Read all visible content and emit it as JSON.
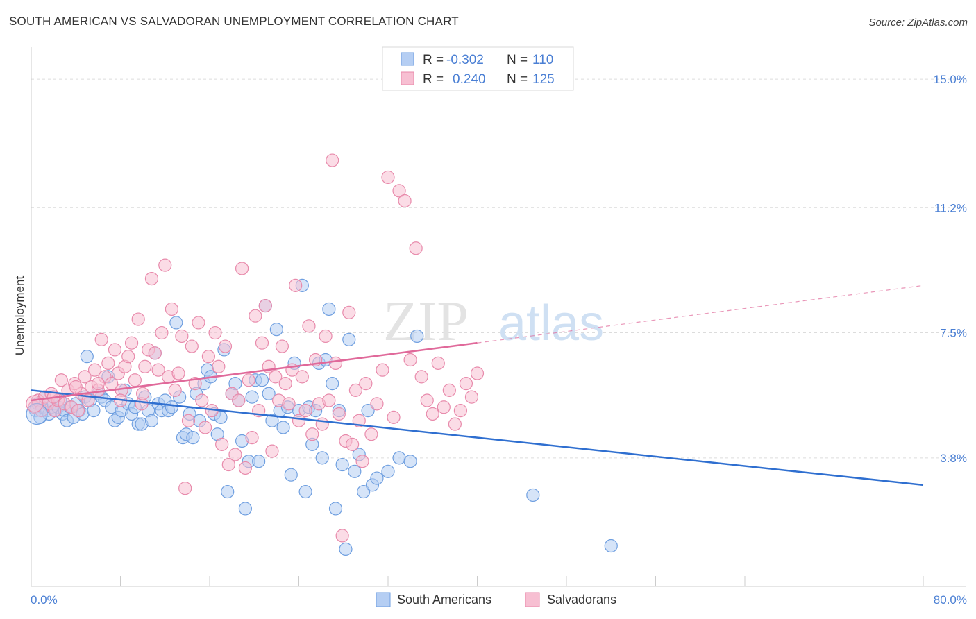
{
  "title": "SOUTH AMERICAN VS SALVADORAN UNEMPLOYMENT CORRELATION CHART",
  "source": "Source: ZipAtlas.com",
  "watermark": {
    "zip": "ZIP",
    "atlas": "atlas"
  },
  "stats": {
    "r_label": "R =",
    "n_label": "N =",
    "rows": [
      {
        "r": "-0.302",
        "n": "110",
        "color": "#4a7fd4",
        "fill": "#b5cef3"
      },
      {
        "r": "0.240",
        "n": "125",
        "color": "#4a7fd4",
        "fill": "#f7bfd2"
      }
    ]
  },
  "legend": [
    {
      "label": "South Americans",
      "color": "#b5cef3",
      "stroke": "#6f9fe0"
    },
    {
      "label": "Salvadorans",
      "color": "#f7bfd2",
      "stroke": "#e88aab"
    }
  ],
  "chart_data": {
    "type": "scatter",
    "ylabel": "Unemployment",
    "xlim": [
      0,
      80
    ],
    "ylim": [
      0,
      15.7
    ],
    "x_tick_labels": [
      "0.0%",
      "80.0%"
    ],
    "y_ticks": [
      3.8,
      7.5,
      11.2,
      15.0
    ],
    "y_tick_labels": [
      "3.8%",
      "7.5%",
      "11.2%",
      "15.0%"
    ],
    "grid": "horizontal dashed",
    "legend_position": "bottom-center",
    "series": [
      {
        "name": "South Americans",
        "color": "#6f9fe0",
        "fill": "#b5cef3",
        "trend": {
          "x": [
            0,
            80
          ],
          "y": [
            5.8,
            3.0
          ],
          "dashed_from": null
        },
        "points": [
          [
            0.4,
            5.2
          ],
          [
            0.6,
            5.4
          ],
          [
            0.8,
            5.0
          ],
          [
            1.0,
            5.3
          ],
          [
            1.2,
            5.6
          ],
          [
            1.4,
            5.2
          ],
          [
            1.6,
            5.1
          ],
          [
            1.8,
            5.3
          ],
          [
            2.0,
            5.4
          ],
          [
            2.2,
            5.2
          ],
          [
            2.4,
            5.3
          ],
          [
            2.6,
            5.5
          ],
          [
            2.8,
            5.1
          ],
          [
            3.0,
            5.2
          ],
          [
            3.2,
            4.9
          ],
          [
            3.5,
            5.3
          ],
          [
            3.8,
            5.0
          ],
          [
            4.0,
            5.4
          ],
          [
            4.3,
            5.2
          ],
          [
            4.6,
            5.1
          ],
          [
            4.8,
            5.6
          ],
          [
            5.0,
            6.8
          ],
          [
            5.3,
            5.5
          ],
          [
            5.6,
            5.2
          ],
          [
            6.0,
            5.7
          ],
          [
            6.3,
            5.6
          ],
          [
            6.6,
            5.5
          ],
          [
            6.9,
            6.2
          ],
          [
            7.2,
            5.3
          ],
          [
            7.5,
            4.9
          ],
          [
            7.8,
            5.0
          ],
          [
            8.1,
            5.2
          ],
          [
            8.4,
            5.8
          ],
          [
            8.7,
            5.4
          ],
          [
            9.0,
            5.1
          ],
          [
            9.3,
            5.3
          ],
          [
            9.6,
            4.8
          ],
          [
            9.9,
            4.8
          ],
          [
            10.2,
            5.6
          ],
          [
            10.5,
            5.2
          ],
          [
            10.8,
            4.9
          ],
          [
            11.1,
            6.9
          ],
          [
            11.4,
            5.4
          ],
          [
            11.7,
            5.2
          ],
          [
            12.0,
            5.5
          ],
          [
            12.3,
            5.2
          ],
          [
            12.6,
            5.3
          ],
          [
            13.0,
            7.8
          ],
          [
            13.3,
            5.6
          ],
          [
            13.6,
            4.4
          ],
          [
            13.9,
            4.5
          ],
          [
            14.2,
            5.1
          ],
          [
            14.5,
            4.4
          ],
          [
            14.8,
            5.7
          ],
          [
            15.1,
            4.9
          ],
          [
            15.5,
            6.0
          ],
          [
            15.8,
            6.4
          ],
          [
            16.1,
            6.2
          ],
          [
            16.4,
            5.1
          ],
          [
            16.7,
            4.5
          ],
          [
            17.0,
            5.0
          ],
          [
            17.3,
            7.0
          ],
          [
            17.6,
            2.8
          ],
          [
            18.0,
            5.7
          ],
          [
            18.3,
            6.0
          ],
          [
            18.6,
            5.5
          ],
          [
            18.9,
            4.3
          ],
          [
            19.2,
            2.3
          ],
          [
            19.5,
            3.7
          ],
          [
            19.8,
            5.6
          ],
          [
            20.1,
            6.1
          ],
          [
            20.4,
            3.7
          ],
          [
            20.7,
            6.1
          ],
          [
            21.0,
            8.3
          ],
          [
            21.3,
            5.7
          ],
          [
            21.6,
            4.9
          ],
          [
            22.0,
            7.6
          ],
          [
            22.3,
            5.2
          ],
          [
            22.6,
            4.7
          ],
          [
            23.0,
            5.3
          ],
          [
            23.3,
            3.3
          ],
          [
            23.6,
            6.6
          ],
          [
            24.0,
            5.2
          ],
          [
            24.3,
            8.9
          ],
          [
            24.6,
            2.8
          ],
          [
            24.9,
            5.3
          ],
          [
            25.2,
            4.2
          ],
          [
            25.5,
            5.2
          ],
          [
            25.8,
            6.6
          ],
          [
            26.1,
            3.8
          ],
          [
            26.4,
            6.7
          ],
          [
            26.7,
            8.2
          ],
          [
            27.0,
            6.0
          ],
          [
            27.3,
            2.3
          ],
          [
            27.6,
            5.2
          ],
          [
            27.9,
            3.6
          ],
          [
            28.2,
            1.1
          ],
          [
            28.5,
            7.3
          ],
          [
            29.0,
            3.4
          ],
          [
            29.4,
            3.9
          ],
          [
            29.8,
            2.8
          ],
          [
            30.2,
            5.2
          ],
          [
            30.6,
            3.0
          ],
          [
            31.0,
            3.2
          ],
          [
            32.0,
            3.4
          ],
          [
            33.0,
            3.8
          ],
          [
            34.0,
            3.7
          ],
          [
            34.6,
            7.4
          ],
          [
            45.0,
            2.7
          ],
          [
            52.0,
            1.2
          ]
        ]
      },
      {
        "name": "Salvadorans",
        "color": "#e88aab",
        "fill": "#f7bfd2",
        "trend": {
          "x": [
            0,
            80
          ],
          "y": [
            5.5,
            8.9
          ],
          "dashed_from": 40
        },
        "points": [
          [
            0.3,
            5.3
          ],
          [
            0.6,
            5.5
          ],
          [
            0.9,
            5.2
          ],
          [
            1.2,
            5.6
          ],
          [
            1.5,
            5.4
          ],
          [
            1.8,
            5.7
          ],
          [
            2.1,
            5.2
          ],
          [
            2.4,
            5.5
          ],
          [
            2.7,
            6.1
          ],
          [
            3.0,
            5.4
          ],
          [
            3.3,
            5.8
          ],
          [
            3.6,
            5.3
          ],
          [
            3.9,
            6.0
          ],
          [
            4.2,
            5.2
          ],
          [
            4.5,
            5.7
          ],
          [
            4.8,
            6.2
          ],
          [
            5.1,
            5.5
          ],
          [
            5.4,
            5.9
          ],
          [
            5.7,
            6.4
          ],
          [
            6.0,
            5.8
          ],
          [
            6.3,
            7.3
          ],
          [
            6.6,
            6.2
          ],
          [
            6.9,
            6.6
          ],
          [
            7.2,
            6.0
          ],
          [
            7.5,
            7.0
          ],
          [
            7.8,
            6.3
          ],
          [
            8.1,
            5.8
          ],
          [
            8.4,
            6.5
          ],
          [
            8.7,
            6.8
          ],
          [
            9.0,
            7.2
          ],
          [
            9.3,
            6.1
          ],
          [
            9.6,
            7.9
          ],
          [
            9.9,
            5.4
          ],
          [
            10.2,
            6.5
          ],
          [
            10.5,
            7.0
          ],
          [
            10.8,
            9.1
          ],
          [
            11.1,
            6.9
          ],
          [
            11.4,
            6.4
          ],
          [
            11.7,
            7.5
          ],
          [
            12.0,
            9.5
          ],
          [
            12.3,
            6.2
          ],
          [
            12.6,
            8.2
          ],
          [
            12.9,
            5.8
          ],
          [
            13.2,
            6.3
          ],
          [
            13.5,
            7.4
          ],
          [
            13.8,
            2.9
          ],
          [
            14.1,
            4.9
          ],
          [
            14.4,
            7.1
          ],
          [
            14.7,
            6.0
          ],
          [
            15.0,
            7.8
          ],
          [
            15.3,
            5.5
          ],
          [
            15.6,
            4.7
          ],
          [
            15.9,
            6.8
          ],
          [
            16.2,
            5.2
          ],
          [
            16.5,
            7.5
          ],
          [
            16.8,
            6.5
          ],
          [
            17.1,
            4.2
          ],
          [
            17.4,
            7.1
          ],
          [
            17.7,
            3.6
          ],
          [
            18.0,
            5.7
          ],
          [
            18.3,
            3.9
          ],
          [
            18.6,
            5.5
          ],
          [
            18.9,
            9.4
          ],
          [
            19.2,
            3.5
          ],
          [
            19.5,
            6.1
          ],
          [
            19.8,
            4.4
          ],
          [
            20.1,
            8.0
          ],
          [
            20.4,
            5.2
          ],
          [
            20.7,
            7.2
          ],
          [
            21.0,
            8.3
          ],
          [
            21.3,
            6.5
          ],
          [
            21.6,
            4.0
          ],
          [
            21.9,
            6.2
          ],
          [
            22.2,
            5.5
          ],
          [
            22.5,
            7.1
          ],
          [
            22.8,
            6.0
          ],
          [
            23.1,
            5.4
          ],
          [
            23.4,
            6.4
          ],
          [
            23.7,
            8.9
          ],
          [
            24.0,
            4.9
          ],
          [
            24.3,
            6.2
          ],
          [
            24.6,
            5.2
          ],
          [
            24.9,
            7.7
          ],
          [
            25.2,
            4.5
          ],
          [
            25.5,
            6.7
          ],
          [
            25.8,
            5.4
          ],
          [
            26.1,
            4.8
          ],
          [
            26.4,
            7.4
          ],
          [
            26.7,
            5.5
          ],
          [
            27.0,
            12.6
          ],
          [
            27.3,
            6.6
          ],
          [
            27.6,
            5.1
          ],
          [
            27.9,
            1.5
          ],
          [
            28.2,
            4.3
          ],
          [
            28.5,
            8.1
          ],
          [
            28.8,
            4.2
          ],
          [
            29.1,
            5.8
          ],
          [
            29.4,
            4.9
          ],
          [
            29.7,
            3.7
          ],
          [
            30.0,
            6.0
          ],
          [
            30.5,
            4.5
          ],
          [
            31.0,
            5.4
          ],
          [
            31.5,
            6.4
          ],
          [
            32.0,
            12.1
          ],
          [
            32.5,
            5.0
          ],
          [
            33.0,
            11.7
          ],
          [
            33.5,
            11.4
          ],
          [
            34.0,
            6.7
          ],
          [
            34.5,
            10.0
          ],
          [
            35.0,
            6.2
          ],
          [
            35.5,
            5.5
          ],
          [
            36.0,
            5.1
          ],
          [
            36.5,
            6.6
          ],
          [
            37.0,
            5.3
          ],
          [
            37.5,
            5.8
          ],
          [
            38.0,
            4.8
          ],
          [
            38.5,
            5.2
          ],
          [
            39.0,
            6.0
          ],
          [
            39.5,
            5.6
          ],
          [
            40.0,
            6.3
          ],
          [
            2.0,
            5.6
          ],
          [
            4.0,
            5.9
          ],
          [
            6.0,
            6.0
          ],
          [
            8.0,
            5.5
          ],
          [
            10.0,
            5.7
          ]
        ]
      }
    ]
  }
}
